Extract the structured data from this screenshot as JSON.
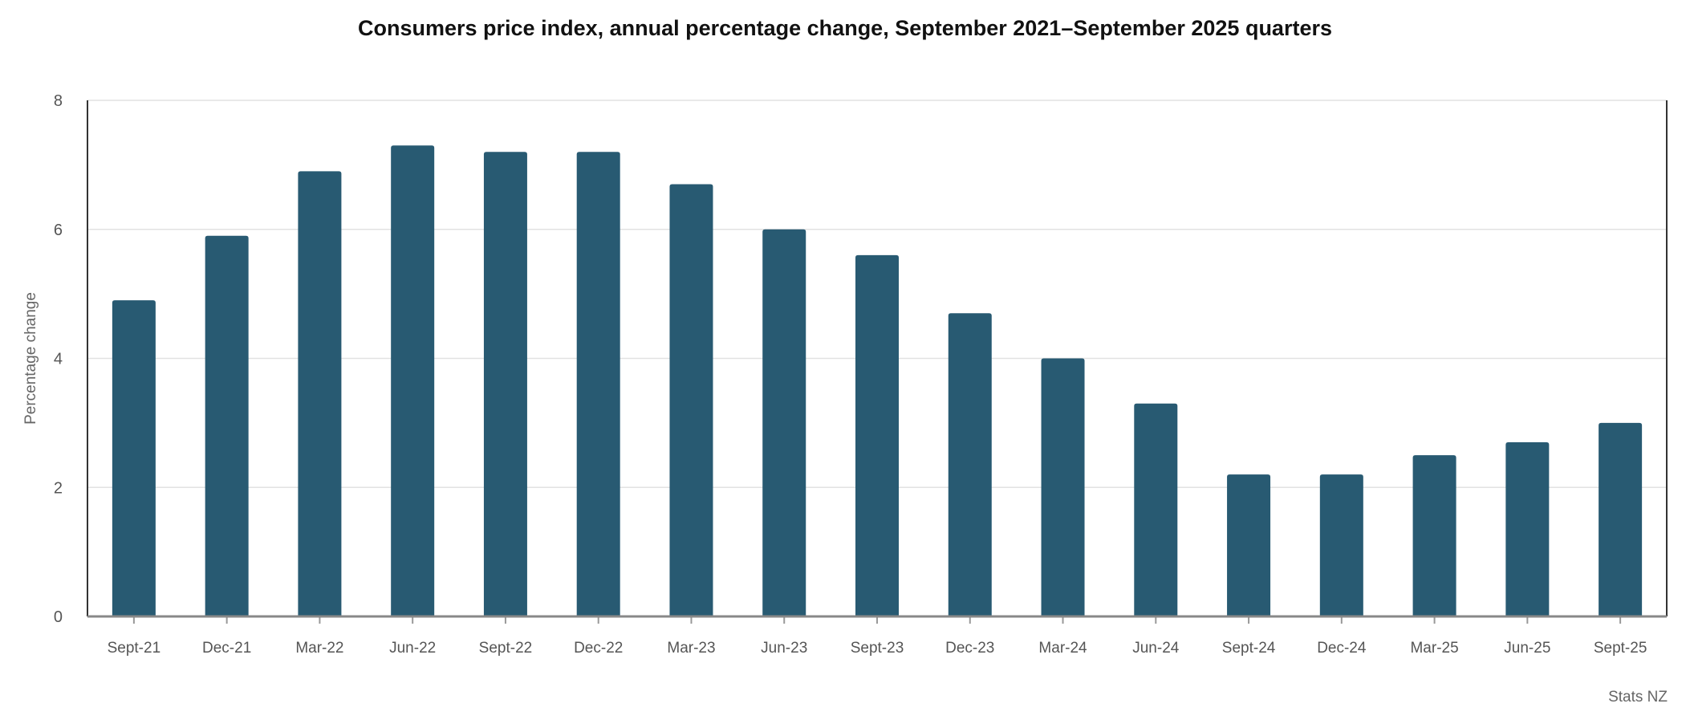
{
  "chart_data": {
    "type": "bar",
    "title": "Consumers price index, annual percentage change, September 2021–September 2025 quarters",
    "xlabel": "",
    "ylabel": "Percentage change",
    "source": "Stats NZ",
    "ylim": [
      0,
      8
    ],
    "yticks": [
      0,
      2,
      4,
      6,
      8
    ],
    "grid": true,
    "bar_color": "#285a72",
    "categories": [
      "Sept-21",
      "Dec-21",
      "Mar-22",
      "Jun-22",
      "Sept-22",
      "Dec-22",
      "Mar-23",
      "Jun-23",
      "Sept-23",
      "Dec-23",
      "Mar-24",
      "Jun-24",
      "Sept-24",
      "Dec-24",
      "Mar-25",
      "Jun-25",
      "Sept-25"
    ],
    "values": [
      4.9,
      5.9,
      6.9,
      7.3,
      7.2,
      7.2,
      6.7,
      6.0,
      5.6,
      4.7,
      4.0,
      3.3,
      2.2,
      2.2,
      2.5,
      2.7,
      3.0
    ]
  }
}
